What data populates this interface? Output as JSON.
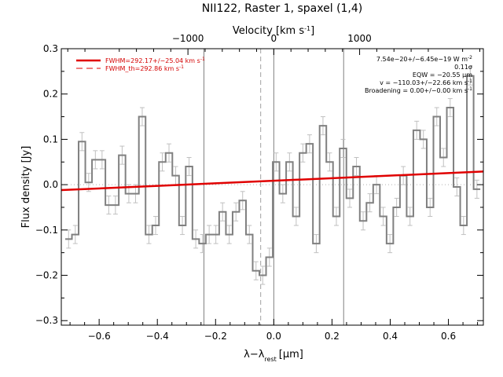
{
  "chart_data": {
    "type": "line",
    "title": "NII122, Raster 1, spaxel (1,4)",
    "xlabel": "λ−λ",
    "xlabel_sub": "rest",
    "xlabel_unit": "[μm]",
    "ylabel": "Flux density [Jy]",
    "top_xlabel": "Velocity [km s",
    "top_xlabel_sup": "-1",
    "top_xlabel_end": "]",
    "xlim": [
      -0.73,
      0.72
    ],
    "ylim": [
      -0.31,
      0.3
    ],
    "x_ticks": [
      -0.6,
      -0.4,
      -0.2,
      0.0,
      0.2,
      0.4,
      0.6
    ],
    "x_tick_labels": [
      "−0.6",
      "−0.4",
      "−0.2",
      "0.0",
      "0.2",
      "0.4",
      "0.6"
    ],
    "y_ticks": [
      -0.3,
      -0.2,
      -0.1,
      0.0,
      0.1,
      0.2,
      0.3
    ],
    "y_tick_labels": [
      "−0.3",
      "−0.2",
      "−0.1",
      "0.0",
      "0.1",
      "0.2",
      "0.3"
    ],
    "top_x_ticks": [
      -0.2949,
      0.0,
      0.2949
    ],
    "top_x_tick_labels": [
      "−1000",
      "0",
      "1000"
    ],
    "series": [
      {
        "name": "spectrum",
        "style": "step",
        "color": "#808080",
        "x": [
          -0.705,
          -0.682,
          -0.659,
          -0.636,
          -0.613,
          -0.59,
          -0.567,
          -0.544,
          -0.521,
          -0.498,
          -0.475,
          -0.452,
          -0.429,
          -0.406,
          -0.383,
          -0.36,
          -0.337,
          -0.314,
          -0.291,
          -0.268,
          -0.245,
          -0.222,
          -0.199,
          -0.176,
          -0.153,
          -0.13,
          -0.107,
          -0.084,
          -0.061,
          -0.038,
          -0.015,
          0.008,
          0.031,
          0.054,
          0.077,
          0.1,
          0.123,
          0.146,
          0.169,
          0.192,
          0.215,
          0.238,
          0.261,
          0.284,
          0.307,
          0.33,
          0.353,
          0.376,
          0.399,
          0.422,
          0.445,
          0.468,
          0.491,
          0.514,
          0.537,
          0.56,
          0.583,
          0.606,
          0.629,
          0.652,
          0.675,
          0.698
        ],
        "values": [
          -0.12,
          -0.11,
          0.095,
          0.005,
          0.055,
          0.055,
          -0.045,
          -0.045,
          0.065,
          -0.02,
          -0.02,
          0.15,
          -0.11,
          -0.09,
          0.05,
          0.07,
          0.02,
          -0.09,
          0.04,
          -0.12,
          -0.13,
          -0.11,
          -0.11,
          -0.06,
          -0.11,
          -0.06,
          -0.035,
          -0.11,
          -0.19,
          -0.2,
          -0.16,
          0.05,
          -0.02,
          0.05,
          -0.07,
          0.07,
          0.09,
          -0.13,
          0.13,
          0.05,
          -0.07,
          0.08,
          -0.03,
          0.04,
          -0.08,
          -0.04,
          0.0,
          -0.07,
          -0.13,
          -0.05,
          0.02,
          -0.07,
          0.12,
          0.1,
          -0.05,
          0.15,
          0.06,
          0.17,
          -0.005,
          -0.09,
          0.24,
          -0.01
        ],
        "errors": [
          0.02,
          0.02,
          0.02,
          0.02,
          0.02,
          0.02,
          0.02,
          0.02,
          0.02,
          0.02,
          0.02,
          0.02,
          0.02,
          0.02,
          0.02,
          0.02,
          0.02,
          0.02,
          0.02,
          0.02,
          0.02,
          0.02,
          0.02,
          0.02,
          0.02,
          0.02,
          0.02,
          0.02,
          0.02,
          0.02,
          0.02,
          0.02,
          0.02,
          0.02,
          0.02,
          0.02,
          0.02,
          0.02,
          0.02,
          0.02,
          0.02,
          0.02,
          0.02,
          0.02,
          0.02,
          0.02,
          0.02,
          0.02,
          0.02,
          0.02,
          0.02,
          0.02,
          0.02,
          0.02,
          0.02,
          0.02,
          0.02,
          0.02,
          0.02,
          0.02,
          0.02,
          0.02
        ]
      },
      {
        "name": "FWHM=292.17+/−25.04 km s",
        "name_sup": "-1",
        "style": "line",
        "color": "#e00000",
        "x": [
          -0.73,
          0.72
        ],
        "values": [
          -0.012,
          0.029
        ]
      },
      {
        "name": "FWHM_th=292.86 km s",
        "name_sup": "-1",
        "style": "dashed",
        "color": "#e00000",
        "x": [],
        "values": []
      }
    ],
    "vertical_lines": [
      {
        "x": -0.24,
        "style": "solid",
        "color": "#808080"
      },
      {
        "x": -0.045,
        "style": "dashed",
        "color": "#a0a0a0"
      },
      {
        "x": 0.0,
        "style": "solid",
        "color": "#808080"
      },
      {
        "x": 0.24,
        "style": "solid",
        "color": "#808080"
      }
    ],
    "horizontal_lines": [
      {
        "y": 0.0,
        "style": "dotted",
        "color": "#b0b0b0"
      }
    ],
    "legend_position": "top-left",
    "annotations": [
      {
        "text": "7.54e−20+/−6.45e−19 W m",
        "sup": "-2"
      },
      {
        "text": "0.11σ",
        "sup": ""
      },
      {
        "text": "EQW = −20.55 μm",
        "sup": ""
      },
      {
        "text": "v = −110.03+/−22.66 km s",
        "sup": "-1"
      },
      {
        "text": "Broadening = 0.00+/−0.00 km s",
        "sup": "-1"
      }
    ],
    "grid": false
  }
}
